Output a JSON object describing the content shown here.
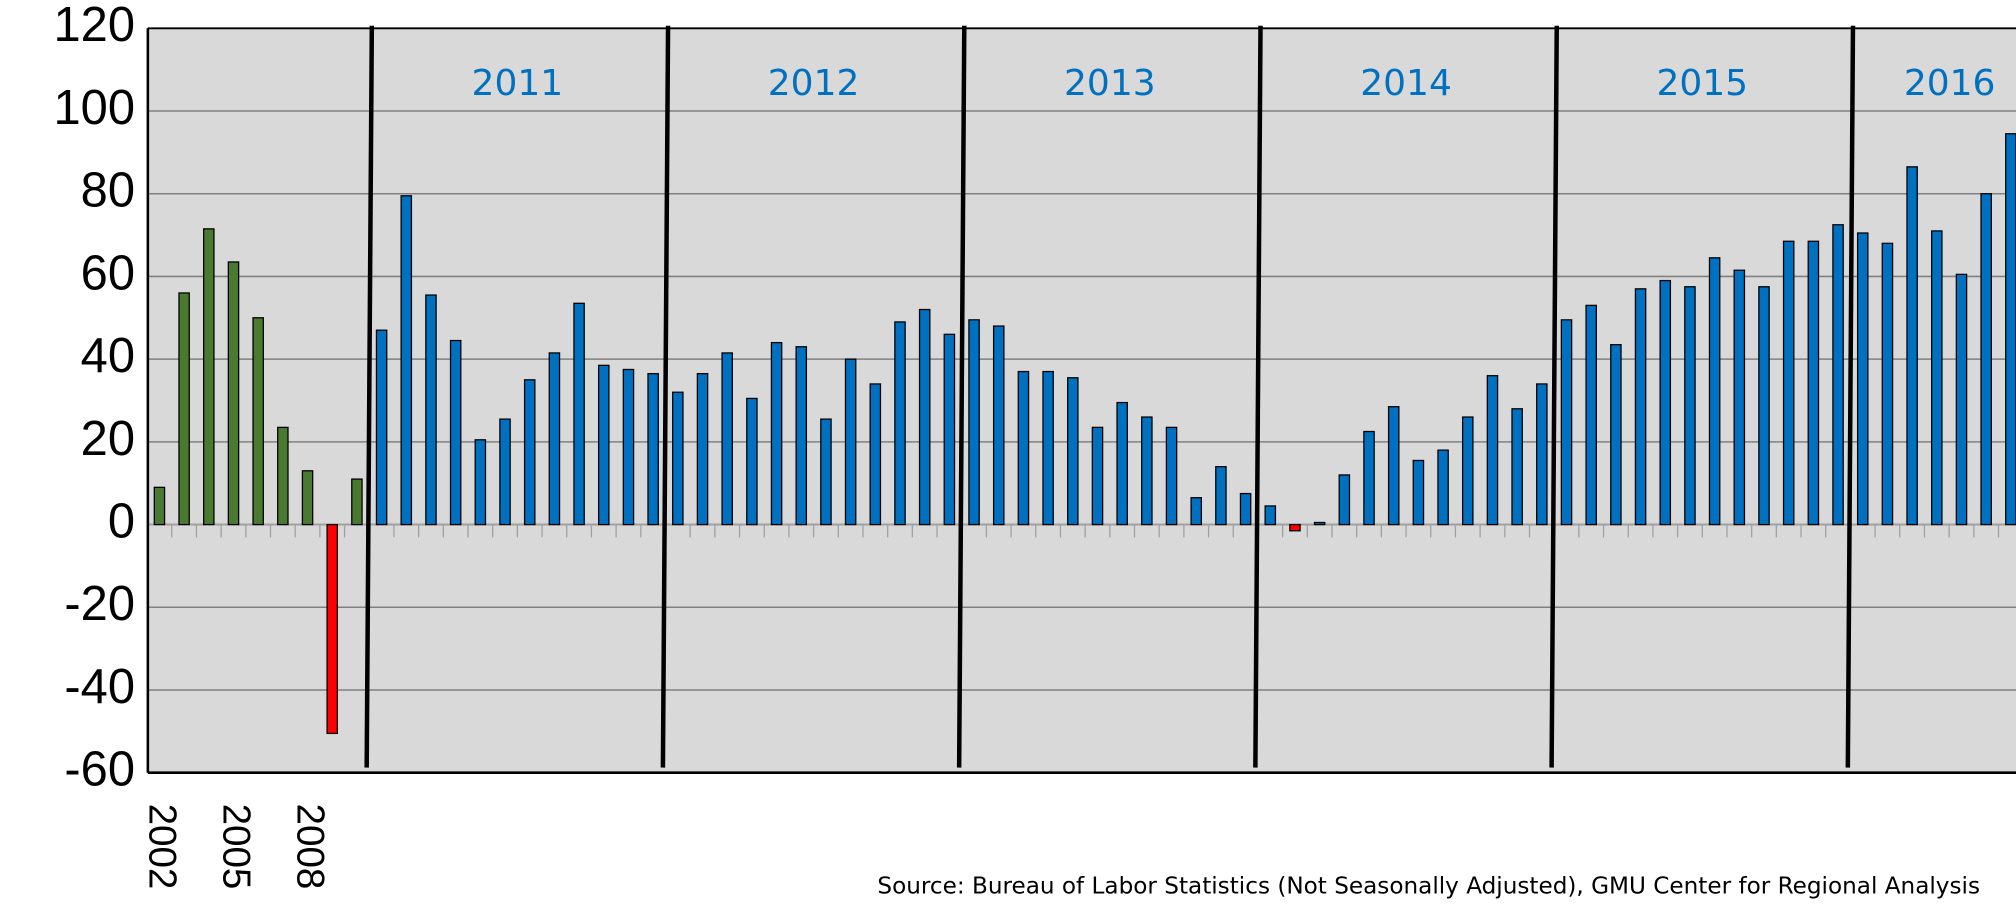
{
  "chart_data": {
    "type": "bar",
    "categories": [
      "2002",
      null,
      null,
      "2005",
      null,
      null,
      "2008",
      null,
      null,
      null,
      null,
      null,
      null,
      null,
      null,
      null,
      null,
      null,
      null,
      null,
      null,
      null,
      null,
      null,
      null,
      null,
      null,
      null,
      null,
      null,
      null,
      null,
      null,
      null,
      null,
      null,
      null,
      null,
      null,
      null,
      null,
      null,
      null,
      null,
      null,
      null,
      null,
      null,
      null,
      null,
      null,
      null,
      null,
      null,
      null,
      null,
      null,
      null,
      null,
      null,
      null,
      null,
      null,
      null,
      null,
      null,
      null,
      null,
      null,
      null,
      null,
      null,
      null,
      null,
      null,
      null
    ],
    "values": [
      9,
      56,
      71.5,
      63.5,
      50,
      23.5,
      13,
      -50.5,
      11,
      47,
      79.5,
      55.5,
      44.5,
      20.5,
      25.5,
      35,
      41.5,
      53.5,
      38.5,
      37.5,
      36.5,
      32,
      36.5,
      41.5,
      30.5,
      44,
      43,
      25.5,
      40,
      34,
      49,
      52,
      46,
      49.5,
      48,
      37,
      37,
      35.5,
      23.5,
      29.5,
      26,
      23.5,
      6.5,
      14,
      7.5,
      4.5,
      -1.5,
      0.5,
      12,
      22.5,
      28.5,
      15.5,
      18,
      26,
      36,
      28,
      34,
      49.5,
      53,
      43.5,
      57,
      59,
      57.5,
      64.5,
      61.5,
      57.5,
      68.5,
      68.5,
      72.5,
      70.5,
      68,
      86.5,
      71,
      60.5,
      80,
      94.5
    ],
    "colors": [
      "#4a7a2f",
      "#4a7a2f",
      "#4a7a2f",
      "#4a7a2f",
      "#4a7a2f",
      "#4a7a2f",
      "#4a7a2f",
      "#ff0000",
      "#4a7a2f",
      "#0070c0",
      "#0070c0",
      "#0070c0",
      "#0070c0",
      "#0070c0",
      "#0070c0",
      "#0070c0",
      "#0070c0",
      "#0070c0",
      "#0070c0",
      "#0070c0",
      "#0070c0",
      "#0070c0",
      "#0070c0",
      "#0070c0",
      "#0070c0",
      "#0070c0",
      "#0070c0",
      "#0070c0",
      "#0070c0",
      "#0070c0",
      "#0070c0",
      "#0070c0",
      "#0070c0",
      "#0070c0",
      "#0070c0",
      "#0070c0",
      "#0070c0",
      "#0070c0",
      "#0070c0",
      "#0070c0",
      "#0070c0",
      "#0070c0",
      "#0070c0",
      "#0070c0",
      "#0070c0",
      "#0070c0",
      "#ff0000",
      "#0070c0",
      "#0070c0",
      "#0070c0",
      "#0070c0",
      "#0070c0",
      "#0070c0",
      "#0070c0",
      "#0070c0",
      "#0070c0",
      "#0070c0",
      "#0070c0",
      "#0070c0",
      "#0070c0",
      "#0070c0",
      "#0070c0",
      "#0070c0",
      "#0070c0",
      "#0070c0",
      "#0070c0",
      "#0070c0",
      "#0070c0",
      "#0070c0",
      "#0070c0",
      "#0070c0",
      "#0070c0",
      "#0070c0",
      "#0070c0",
      "#0070c0",
      "#0070c0"
    ],
    "annotations": [
      "2011",
      "2012",
      "2013",
      "2014",
      "2015",
      "2016"
    ],
    "annotation_color": "#0070c0",
    "source": "Source: Bureau of Labor Statistics (Not Seasonally Adjusted), GMU Center for Regional Analysis",
    "ylim": [
      -60,
      120
    ],
    "yticks": [
      -60,
      -40,
      -20,
      0,
      20,
      40,
      60,
      80,
      100,
      120
    ],
    "grid": true
  }
}
